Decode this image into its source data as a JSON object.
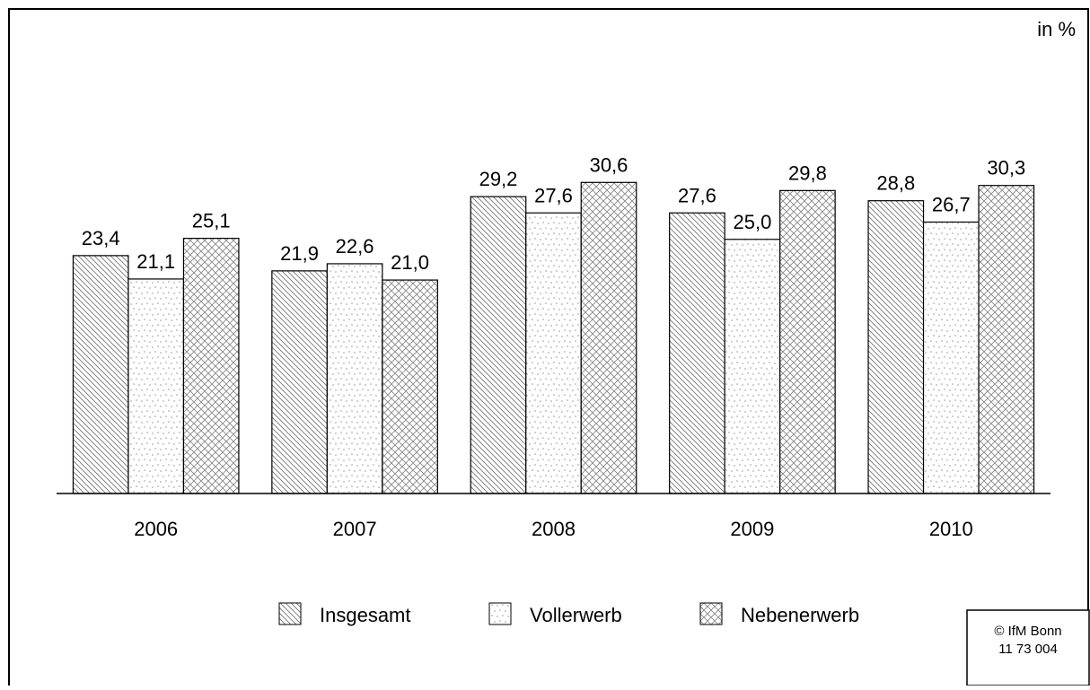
{
  "chart_data": {
    "type": "bar",
    "unit_label": "in %",
    "categories": [
      "2006",
      "2007",
      "2008",
      "2009",
      "2010"
    ],
    "series": [
      {
        "name": "Insgesamt",
        "values": [
          23.4,
          21.9,
          29.2,
          27.6,
          28.8
        ],
        "value_labels": [
          "23,4",
          "21,9",
          "29,2",
          "27,6",
          "28,8"
        ]
      },
      {
        "name": "Vollerwerb",
        "values": [
          21.1,
          22.6,
          27.6,
          25.0,
          26.7
        ],
        "value_labels": [
          "21,1",
          "22,6",
          "27,6",
          "25,0",
          "26,7"
        ]
      },
      {
        "name": "Nebenerwerb",
        "values": [
          25.1,
          21.0,
          30.6,
          29.8,
          30.3
        ],
        "value_labels": [
          "25,1",
          "21,0",
          "30,6",
          "29,8",
          "30,3"
        ]
      }
    ],
    "source": [
      "© IfM Bonn",
      "11 73 004"
    ]
  }
}
